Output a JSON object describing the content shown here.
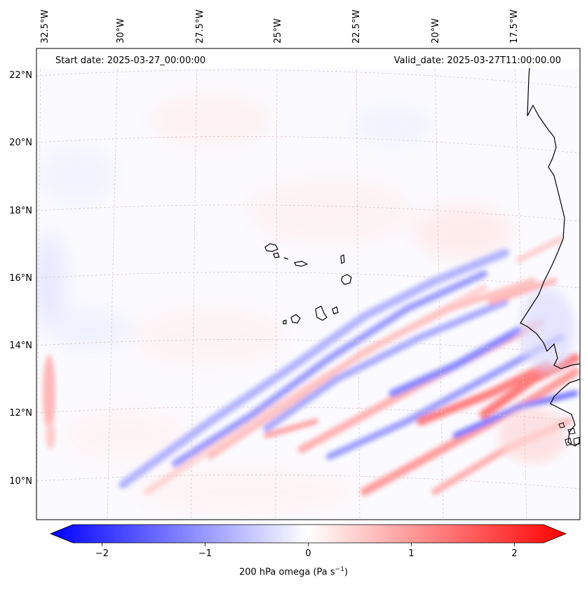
{
  "start_date": "Start date: 2025-03-27_00:00:00",
  "valid_date": "Valid_date: 2025-03-27T11:00:00.00",
  "lon_labels": [
    "32.5°W",
    "30°W",
    "27.5°W",
    "25°W",
    "22.5°W",
    "20°W",
    "17.5°W"
  ],
  "lat_labels": [
    "22°N",
    "20°N",
    "18°N",
    "16°N",
    "14°N",
    "12°N",
    "10°N"
  ],
  "colorbar": {
    "label": "200 hPa omega (Pa s",
    "label_exp": "−1",
    "label_close": ")",
    "ticks": [
      "−2",
      "−1",
      "0",
      "1",
      "2"
    ],
    "tick_values": [
      -2,
      -1,
      0,
      1,
      2
    ],
    "min": -2.5,
    "max": 2.5,
    "neg_color": "#0000ff",
    "zero_color": "#ffffff",
    "pos_color": "#ff0000"
  },
  "chart_data": {
    "type": "heatmap",
    "title": "",
    "variable": "200 hPa omega",
    "units": "Pa s^-1",
    "lon_range_deg": [
      -33,
      -15
    ],
    "lat_range_deg": [
      9,
      22.5
    ],
    "color_range": [
      -2.5,
      2.5
    ],
    "features": [
      {
        "name": "Cape Verde islands",
        "lat_range": [
          14.8,
          17.2
        ],
        "lon_range": [
          -25.4,
          -22.6
        ]
      },
      {
        "name": "West African coastline (Mauritania, Senegal, Guinea-Bissau)",
        "lat_range": [
          10,
          22.5
        ],
        "lon_range": [
          -17.5,
          -15
        ]
      },
      {
        "name": "SW-NE oriented bands of alternating ascent/descent",
        "lat_range": [
          10,
          16
        ],
        "lon_range": [
          -30,
          -16
        ]
      }
    ]
  }
}
